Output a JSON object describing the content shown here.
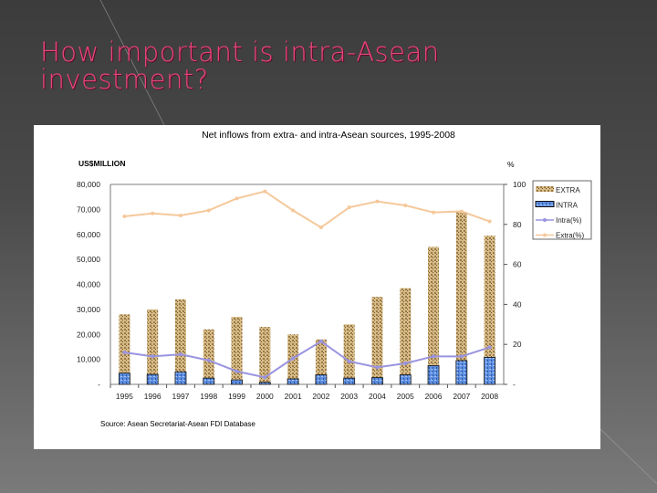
{
  "slide": {
    "title": "How important is intra-Asean investment?"
  },
  "chart_data": {
    "type": "bar",
    "title": "Net inflows from extra- and intra-Asean sources, 1995-2008",
    "ylabel_left": "US$MILLION",
    "ylabel_right": "%",
    "source": "Source: Asean Secretariat-Asean FDI Database",
    "categories": [
      "1995",
      "1996",
      "1997",
      "1998",
      "1999",
      "2000",
      "2001",
      "2002",
      "2003",
      "2004",
      "2005",
      "2006",
      "2007",
      "2008"
    ],
    "y_left": {
      "range": [
        0,
        80000
      ],
      "ticks": [
        "-",
        "10,000",
        "20,000",
        "30,000",
        "40,000",
        "50,000",
        "60,000",
        "70,000",
        "80,000"
      ]
    },
    "y_right": {
      "range": [
        0,
        100
      ],
      "ticks": [
        "-",
        "20",
        "40",
        "60",
        "80",
        "100"
      ]
    },
    "legend_position": "right",
    "series": [
      {
        "name": "EXTRA",
        "kind": "bar",
        "axis": "left",
        "color": "#c8a872",
        "values": [
          28000,
          30000,
          34000,
          22000,
          27000,
          23000,
          20000,
          18000,
          24000,
          35000,
          38500,
          55000,
          69000,
          59500
        ]
      },
      {
        "name": "INTRA",
        "kind": "bar",
        "axis": "left",
        "color": "#4f7fd0",
        "values": [
          4500,
          4000,
          5000,
          2500,
          1800,
          800,
          2200,
          3800,
          2500,
          2700,
          3800,
          7500,
          9500,
          10800
        ]
      },
      {
        "name": "Intra(%)",
        "kind": "line",
        "axis": "right",
        "color": "#9a94e0",
        "values": [
          16,
          14,
          15,
          12,
          6.5,
          3.5,
          13,
          21.5,
          11.5,
          8.5,
          10.5,
          14,
          14,
          18.5
        ]
      },
      {
        "name": "Extra(%)",
        "kind": "line",
        "axis": "right",
        "color": "#f5c89a",
        "values": [
          84,
          85.5,
          84.5,
          87,
          93,
          96.5,
          87,
          78.5,
          88.5,
          91.5,
          89.5,
          86,
          86.5,
          81.5
        ]
      }
    ]
  }
}
